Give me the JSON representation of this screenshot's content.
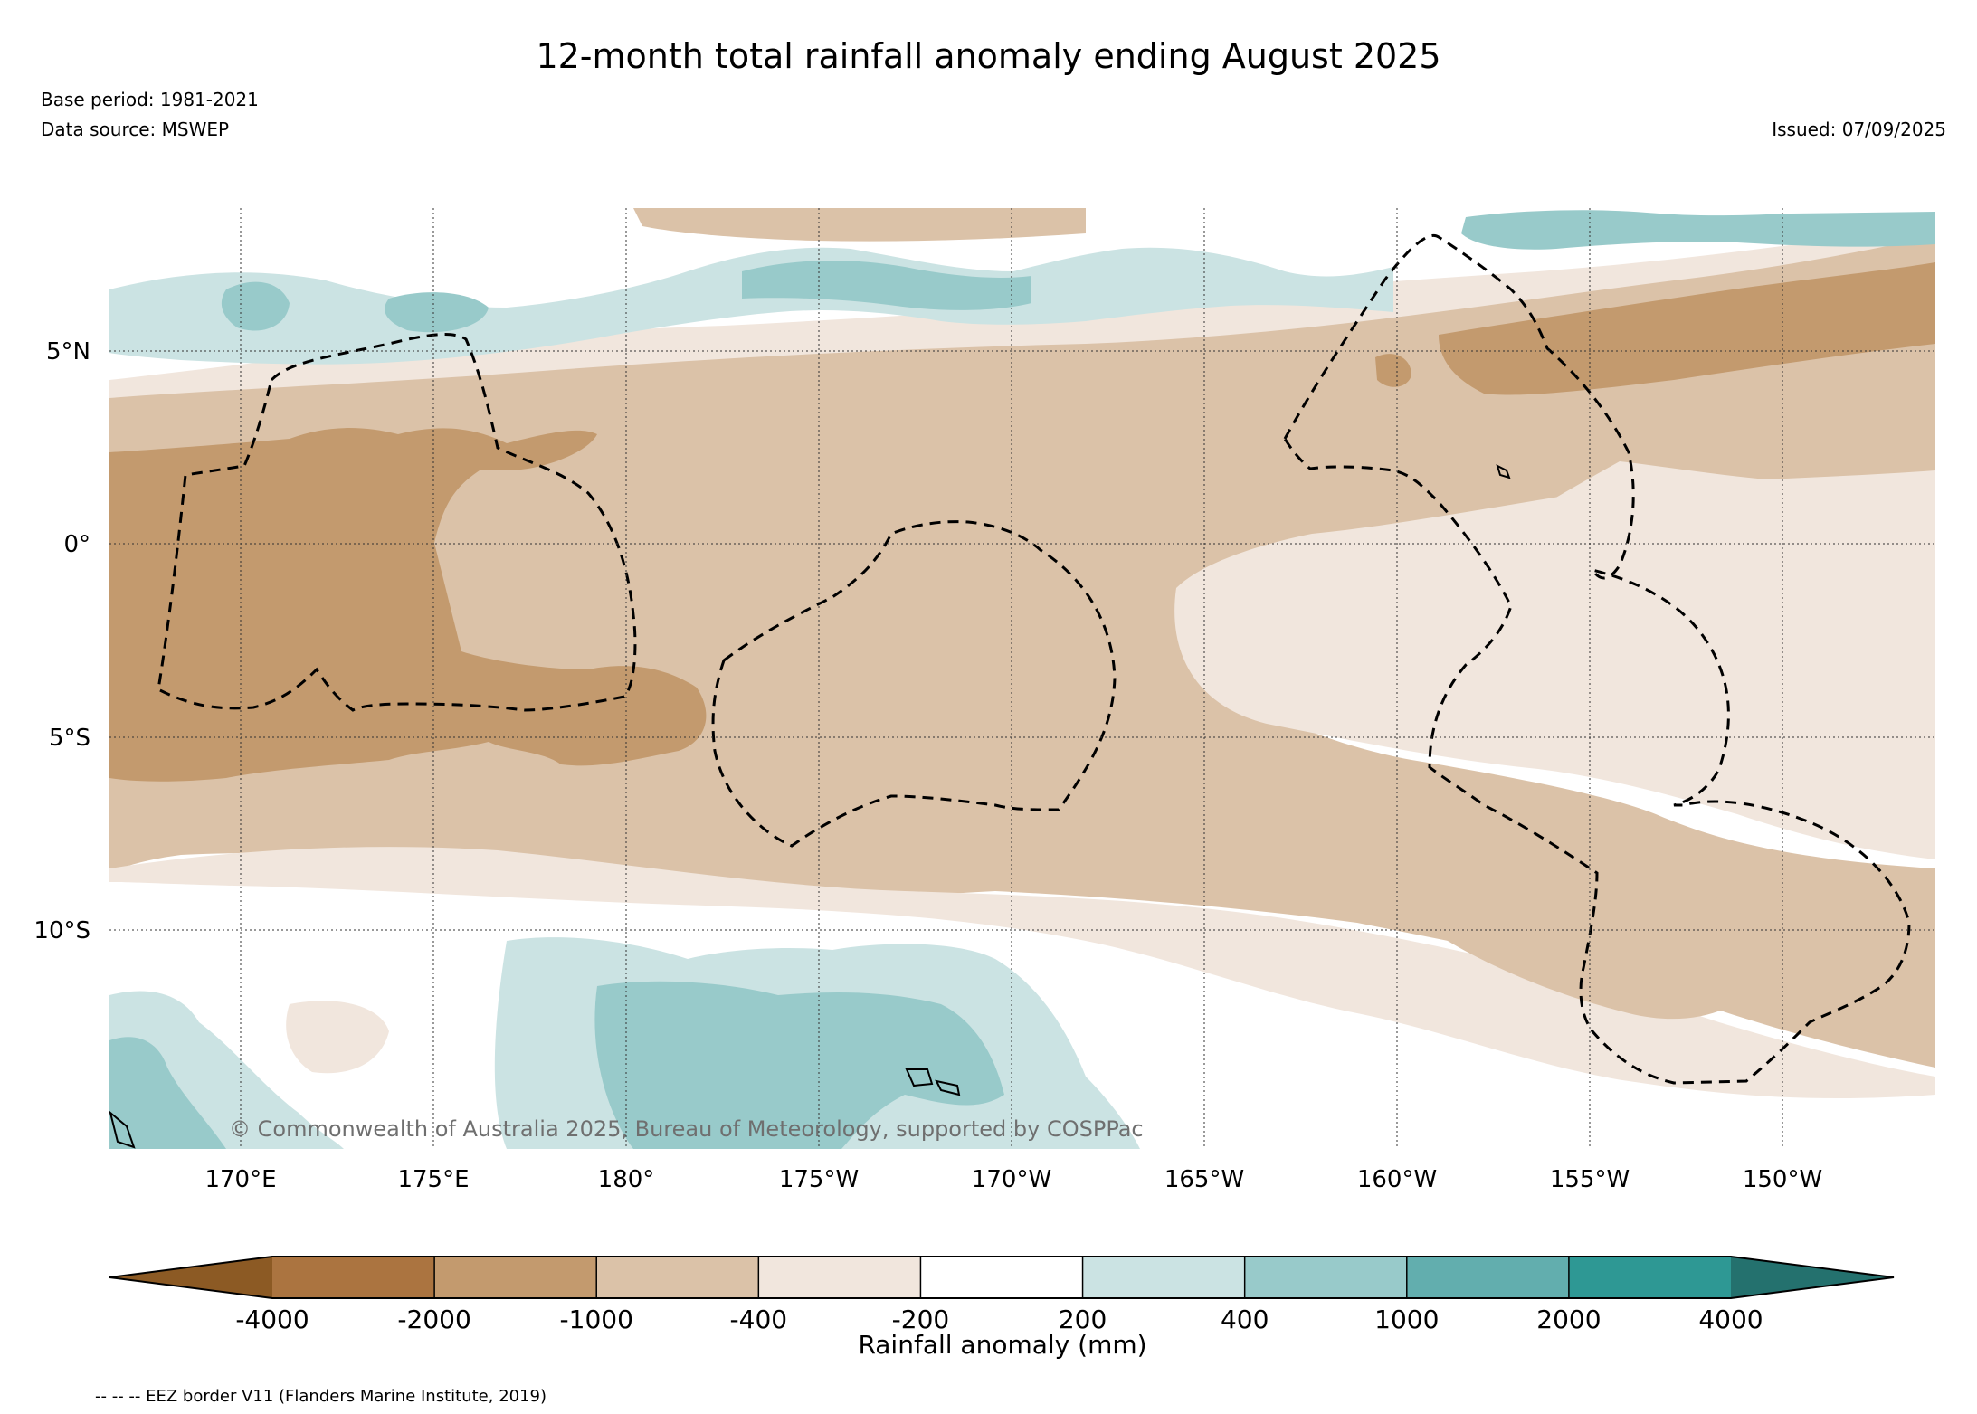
{
  "header": {
    "title": "12-month total rainfall anomaly ending August 2025",
    "base_period": "Base period: 1981-2021",
    "data_source": "Data source: MSWEP",
    "issued": "Issued: 07/09/2025"
  },
  "map": {
    "lat_labels": [
      "5°N",
      "0°",
      "5°S",
      "10°S"
    ],
    "lon_labels": [
      "170°E",
      "175°E",
      "180°",
      "175°W",
      "170°W",
      "165°W",
      "160°W",
      "155°W",
      "150°W"
    ],
    "copyright": "© Commonwealth of Australia 2025, Bureau of Meteorology, supported by COSPPac"
  },
  "legend": {
    "title": "Rainfall anomaly (mm)",
    "tick_labels": [
      "-4000",
      "-2000",
      "-1000",
      "-400",
      "-200",
      "200",
      "400",
      "1000",
      "2000",
      "4000"
    ],
    "colors": [
      "#8c5a24",
      "#ab7440",
      "#c39a6e",
      "#dbc2a8",
      "#f1e6dd",
      "#ffffff",
      "#cbe3e3",
      "#98caca",
      "#62aeae",
      "#2e9894",
      "#24716e"
    ]
  },
  "footer": {
    "eez_note": "-- -- -- EEZ border V11 (Flanders Marine Institute, 2019)"
  }
}
